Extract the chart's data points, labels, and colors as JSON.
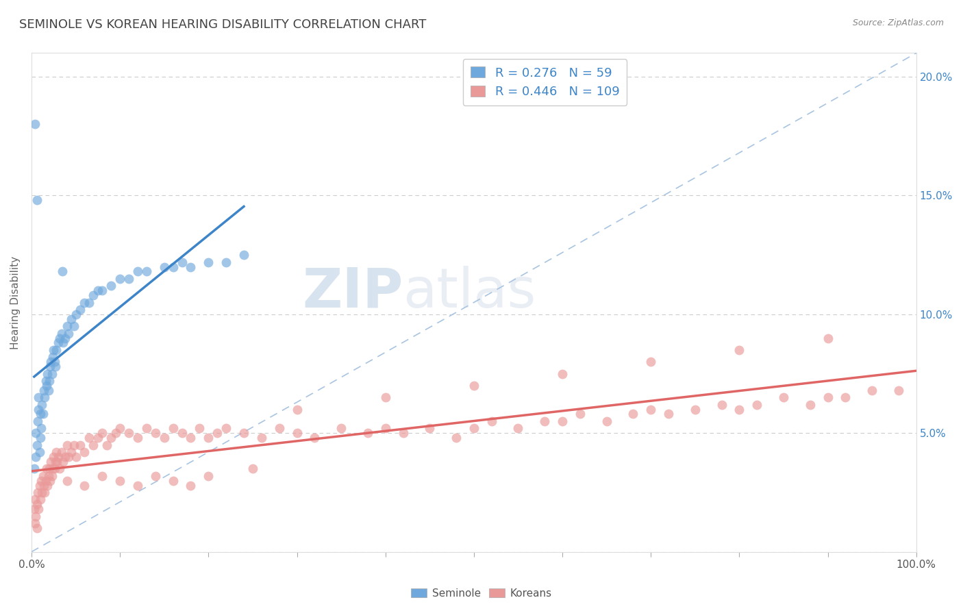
{
  "title": "SEMINOLE VS KOREAN HEARING DISABILITY CORRELATION CHART",
  "source": "Source: ZipAtlas.com",
  "ylabel": "Hearing Disability",
  "xlim": [
    0.0,
    1.0
  ],
  "ylim": [
    0.0,
    0.21
  ],
  "x_tick_positions": [
    0.0,
    0.1,
    0.2,
    0.3,
    0.4,
    0.5,
    0.6,
    0.7,
    0.8,
    0.9,
    1.0
  ],
  "x_tick_labels": [
    "0.0%",
    "",
    "",
    "",
    "",
    "",
    "",
    "",
    "",
    "",
    "100.0%"
  ],
  "y_ticks": [
    0.0,
    0.05,
    0.1,
    0.15,
    0.2
  ],
  "y_tick_labels_left": [
    "",
    "",
    "",
    "",
    ""
  ],
  "y_tick_labels_right": [
    "",
    "5.0%",
    "10.0%",
    "15.0%",
    "20.0%"
  ],
  "seminole_color": "#6fa8dc",
  "seminole_line_color": "#3d85c8",
  "korean_color": "#ea9999",
  "korean_line_color": "#e06666",
  "seminole_R": 0.276,
  "seminole_N": 59,
  "korean_R": 0.446,
  "korean_N": 109,
  "legend_text_color": "#3d85c8",
  "title_color": "#434343",
  "source_color": "#888888",
  "watermark_color": "#ccd9e8",
  "grid_color": "#cccccc",
  "ref_line_color": "#a8c4e0",
  "seminole_x": [
    0.003,
    0.005,
    0.005,
    0.006,
    0.007,
    0.008,
    0.008,
    0.009,
    0.01,
    0.01,
    0.011,
    0.012,
    0.013,
    0.014,
    0.015,
    0.016,
    0.017,
    0.018,
    0.019,
    0.02,
    0.021,
    0.022,
    0.023,
    0.024,
    0.025,
    0.026,
    0.027,
    0.028,
    0.03,
    0.032,
    0.034,
    0.036,
    0.038,
    0.04,
    0.042,
    0.045,
    0.048,
    0.05,
    0.055,
    0.06,
    0.065,
    0.07,
    0.075,
    0.08,
    0.09,
    0.1,
    0.11,
    0.12,
    0.13,
    0.15,
    0.16,
    0.17,
    0.18,
    0.2,
    0.22,
    0.24,
    0.004,
    0.006,
    0.035
  ],
  "seminole_y": [
    0.035,
    0.04,
    0.05,
    0.045,
    0.055,
    0.06,
    0.065,
    0.042,
    0.048,
    0.058,
    0.052,
    0.062,
    0.058,
    0.068,
    0.065,
    0.072,
    0.07,
    0.075,
    0.068,
    0.072,
    0.078,
    0.08,
    0.075,
    0.082,
    0.085,
    0.08,
    0.078,
    0.085,
    0.088,
    0.09,
    0.092,
    0.088,
    0.09,
    0.095,
    0.092,
    0.098,
    0.095,
    0.1,
    0.102,
    0.105,
    0.105,
    0.108,
    0.11,
    0.11,
    0.112,
    0.115,
    0.115,
    0.118,
    0.118,
    0.12,
    0.12,
    0.122,
    0.12,
    0.122,
    0.122,
    0.125,
    0.18,
    0.148,
    0.118
  ],
  "korean_x": [
    0.003,
    0.004,
    0.005,
    0.006,
    0.007,
    0.008,
    0.009,
    0.01,
    0.011,
    0.012,
    0.013,
    0.014,
    0.015,
    0.016,
    0.017,
    0.018,
    0.019,
    0.02,
    0.021,
    0.022,
    0.023,
    0.024,
    0.025,
    0.026,
    0.027,
    0.028,
    0.029,
    0.03,
    0.032,
    0.034,
    0.036,
    0.038,
    0.04,
    0.042,
    0.045,
    0.048,
    0.05,
    0.055,
    0.06,
    0.065,
    0.07,
    0.075,
    0.08,
    0.085,
    0.09,
    0.095,
    0.1,
    0.11,
    0.12,
    0.13,
    0.14,
    0.15,
    0.16,
    0.17,
    0.18,
    0.19,
    0.2,
    0.21,
    0.22,
    0.24,
    0.26,
    0.28,
    0.3,
    0.32,
    0.35,
    0.38,
    0.4,
    0.42,
    0.45,
    0.48,
    0.5,
    0.52,
    0.55,
    0.58,
    0.6,
    0.62,
    0.65,
    0.68,
    0.7,
    0.72,
    0.75,
    0.78,
    0.8,
    0.82,
    0.85,
    0.88,
    0.9,
    0.92,
    0.95,
    0.98,
    0.04,
    0.06,
    0.08,
    0.1,
    0.12,
    0.14,
    0.16,
    0.18,
    0.2,
    0.25,
    0.3,
    0.4,
    0.5,
    0.6,
    0.7,
    0.8,
    0.9,
    0.004,
    0.006
  ],
  "korean_y": [
    0.018,
    0.022,
    0.015,
    0.02,
    0.025,
    0.018,
    0.028,
    0.022,
    0.03,
    0.025,
    0.032,
    0.028,
    0.025,
    0.03,
    0.035,
    0.028,
    0.032,
    0.035,
    0.03,
    0.038,
    0.032,
    0.035,
    0.04,
    0.035,
    0.038,
    0.042,
    0.038,
    0.04,
    0.035,
    0.042,
    0.038,
    0.04,
    0.045,
    0.04,
    0.042,
    0.045,
    0.04,
    0.045,
    0.042,
    0.048,
    0.045,
    0.048,
    0.05,
    0.045,
    0.048,
    0.05,
    0.052,
    0.05,
    0.048,
    0.052,
    0.05,
    0.048,
    0.052,
    0.05,
    0.048,
    0.052,
    0.048,
    0.05,
    0.052,
    0.05,
    0.048,
    0.052,
    0.05,
    0.048,
    0.052,
    0.05,
    0.052,
    0.05,
    0.052,
    0.048,
    0.052,
    0.055,
    0.052,
    0.055,
    0.055,
    0.058,
    0.055,
    0.058,
    0.06,
    0.058,
    0.06,
    0.062,
    0.06,
    0.062,
    0.065,
    0.062,
    0.065,
    0.065,
    0.068,
    0.068,
    0.03,
    0.028,
    0.032,
    0.03,
    0.028,
    0.032,
    0.03,
    0.028,
    0.032,
    0.035,
    0.06,
    0.065,
    0.07,
    0.075,
    0.08,
    0.085,
    0.09,
    0.012,
    0.01
  ]
}
